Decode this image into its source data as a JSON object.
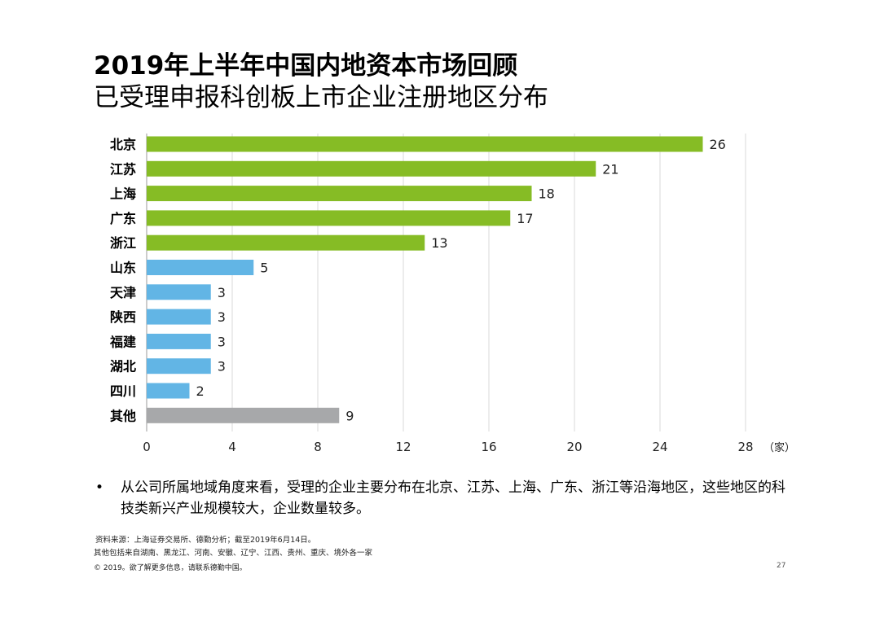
{
  "header": {
    "title": "2019年上半年中国内地资本市场回顾",
    "subtitle": "已受理申报科创板上市企业注册地区分布"
  },
  "chart_data": {
    "type": "bar",
    "orientation": "horizontal",
    "categories": [
      "北京",
      "江苏",
      "上海",
      "广东",
      "浙江",
      "山东",
      "天津",
      "陕西",
      "福建",
      "湖北",
      "四川",
      "其他"
    ],
    "values": [
      26,
      21,
      18,
      17,
      13,
      5,
      3,
      3,
      3,
      3,
      2,
      9
    ],
    "bar_colors": [
      "#86bc25",
      "#86bc25",
      "#86bc25",
      "#86bc25",
      "#86bc25",
      "#62b5e5",
      "#62b5e5",
      "#62b5e5",
      "#62b5e5",
      "#62b5e5",
      "#62b5e5",
      "#a7a8aa"
    ],
    "xticks": [
      "0",
      "4",
      "8",
      "12",
      "16",
      "20",
      "24",
      "28"
    ],
    "xlim": [
      0,
      28
    ],
    "xunit": "（家）",
    "grid": true
  },
  "bullet": {
    "symbol": "•",
    "text": "从公司所属地域角度来看，受理的企业主要分布在北京、江苏、上海、广东、浙江等沿海地区，这些地区的科技类新兴产业规模较大，企业数量较多。"
  },
  "footer": {
    "source": "资料来源：上海证券交易所、德勤分析；截至2019年6月14日。",
    "note": "其他包括来自湖南、黑龙江、河南、安徽、辽宁、江西、贵州、重庆、境外各一家",
    "copyright": "© 2019。欲了解更多信息，请联系德勤中国。",
    "page": "27"
  }
}
